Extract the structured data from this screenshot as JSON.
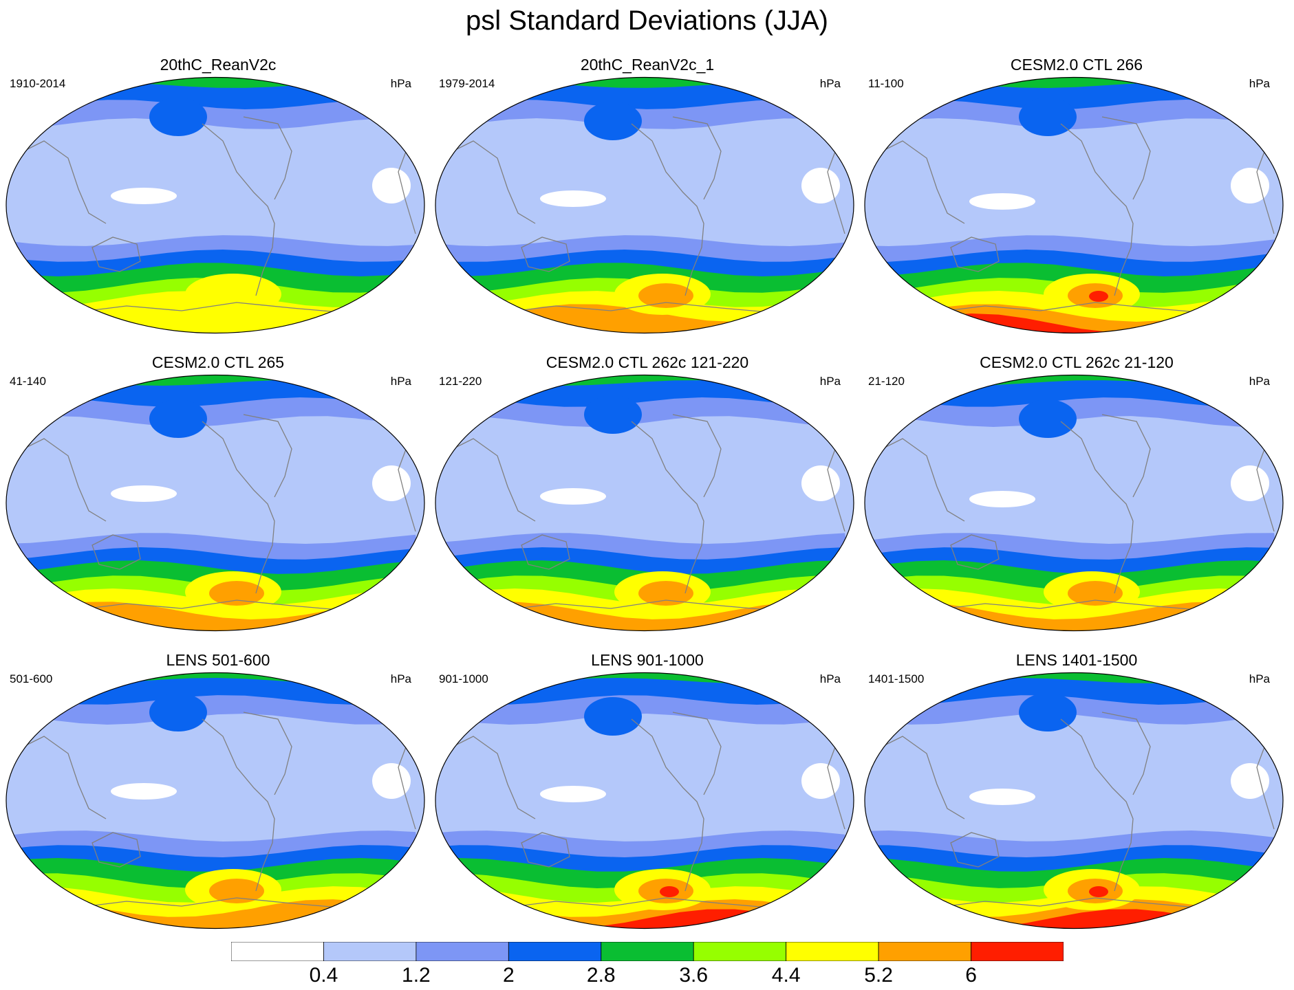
{
  "title": "psl Standard Deviations (JJA)",
  "colors": {
    "levels": [
      "#ffffff",
      "#b4c8fa",
      "#7d96f5",
      "#0a64f0",
      "#0abe32",
      "#96ff00",
      "#ffff00",
      "#ffa000",
      "#ff1e00"
    ],
    "coastline": "#808080",
    "outline": "#000000"
  },
  "colorbar": {
    "labels": [
      "0.4",
      "1.2",
      "2",
      "2.8",
      "3.6",
      "4.4",
      "5.2",
      "6"
    ]
  },
  "panels": [
    {
      "title": "20thC_ReanV2c",
      "years": "1910-2014",
      "units": "hPa",
      "south_max_level": 6
    },
    {
      "title": "20thC_ReanV2c_1",
      "years": "1979-2014",
      "units": "hPa",
      "south_max_level": 7
    },
    {
      "title": "CESM2.0 CTL 266",
      "years": "11-100",
      "units": "hPa",
      "south_max_level": 8
    },
    {
      "title": "CESM2.0 CTL 265",
      "years": "41-140",
      "units": "hPa",
      "south_max_level": 7
    },
    {
      "title": "CESM2.0 CTL 262c 121-220",
      "years": "121-220",
      "units": "hPa",
      "south_max_level": 7
    },
    {
      "title": "CESM2.0 CTL 262c 21-120",
      "years": "21-120",
      "units": "hPa",
      "south_max_level": 7
    },
    {
      "title": "LENS 501-600",
      "years": "501-600",
      "units": "hPa",
      "south_max_level": 7
    },
    {
      "title": "LENS 901-1000",
      "years": "901-1000",
      "units": "hPa",
      "south_max_level": 8
    },
    {
      "title": "LENS 1401-1500",
      "years": "1401-1500",
      "units": "hPa",
      "south_max_level": 8
    }
  ]
}
